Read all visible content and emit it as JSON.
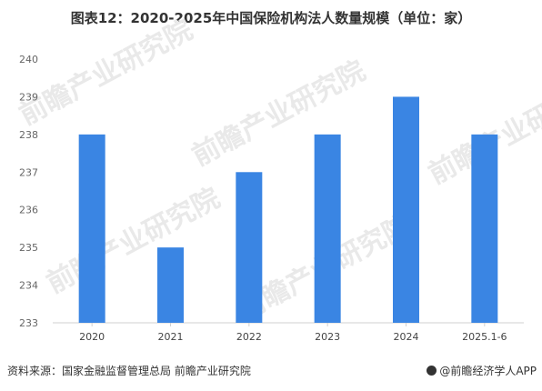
{
  "title": "图表12：2020-2025年中国保险机构法人数量规模（单位：家）",
  "source": "资料来源：国家金融监督管理总局  前瞻产业研究院",
  "brand": "@前瞻经济学人APP",
  "watermark": "前瞻产业研究院",
  "colors": {
    "bar": "#3a85e3"
  },
  "chart_data": {
    "type": "bar",
    "categories": [
      "2020",
      "2021",
      "2022",
      "2023",
      "2024",
      "2025.1-6"
    ],
    "values": [
      238,
      235,
      237,
      238,
      239,
      238
    ],
    "ylim": [
      233,
      240
    ],
    "yticks": [
      233,
      234,
      235,
      236,
      237,
      238,
      239,
      240
    ],
    "grid": false,
    "xlabel": "",
    "ylabel": ""
  }
}
